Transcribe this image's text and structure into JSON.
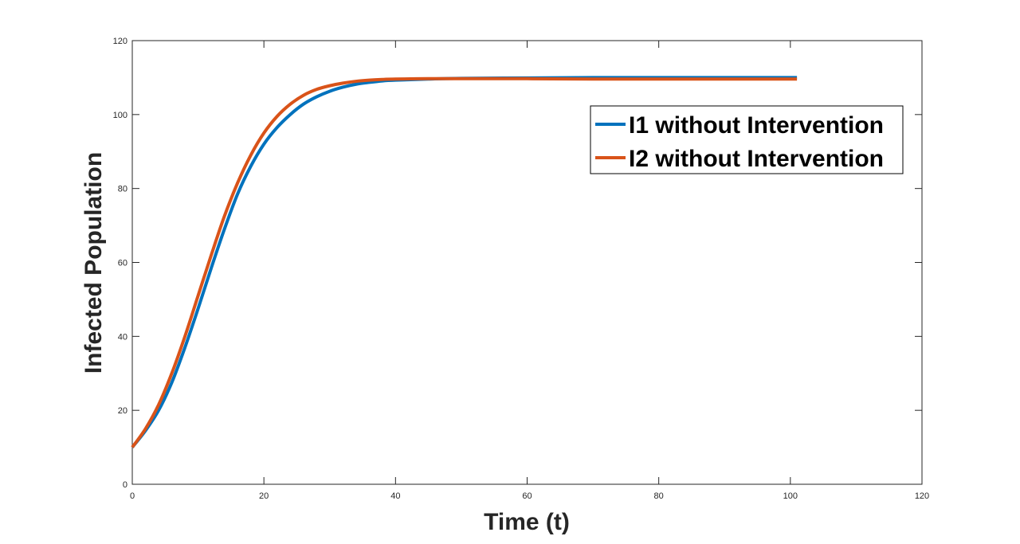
{
  "chart_data": {
    "type": "line",
    "title": "",
    "xlabel": "Time (t)",
    "ylabel": "Infected Population",
    "xlim": [
      0,
      120
    ],
    "ylim": [
      0,
      120
    ],
    "xticks": [
      0,
      20,
      40,
      60,
      80,
      100,
      120
    ],
    "yticks": [
      0,
      20,
      40,
      60,
      80,
      100,
      120
    ],
    "grid": false,
    "legend_location": "upper right",
    "series": [
      {
        "name": "I1 without Intervention",
        "color": "#0072BD",
        "x": [
          0,
          2,
          4,
          6,
          8,
          10,
          12,
          14,
          16,
          18,
          20,
          22,
          24,
          26,
          28,
          30,
          32,
          34,
          36,
          38,
          40,
          45,
          50,
          60,
          70,
          80,
          90,
          101
        ],
        "y": [
          10,
          14.5,
          20,
          27.5,
          37,
          47.5,
          58.5,
          69,
          78.5,
          86,
          92,
          96.5,
          100,
          102.8,
          104.8,
          106.3,
          107.4,
          108.2,
          108.7,
          109.1,
          109.3,
          109.6,
          109.8,
          109.9,
          110,
          110,
          110,
          110
        ]
      },
      {
        "name": "I2 without Intervention",
        "color": "#D95319",
        "x": [
          0,
          2,
          4,
          6,
          8,
          10,
          12,
          14,
          16,
          18,
          20,
          22,
          24,
          26,
          28,
          30,
          32,
          34,
          36,
          38,
          40,
          45,
          50,
          60,
          70,
          80,
          90,
          101
        ],
        "y": [
          10,
          15,
          21.5,
          30,
          40,
          51,
          62,
          72.5,
          81.5,
          89,
          95,
          99.5,
          102.8,
          105.2,
          106.8,
          107.8,
          108.5,
          109,
          109.3,
          109.5,
          109.6,
          109.7,
          109.7,
          109.7,
          109.6,
          109.6,
          109.6,
          109.6
        ]
      }
    ]
  }
}
